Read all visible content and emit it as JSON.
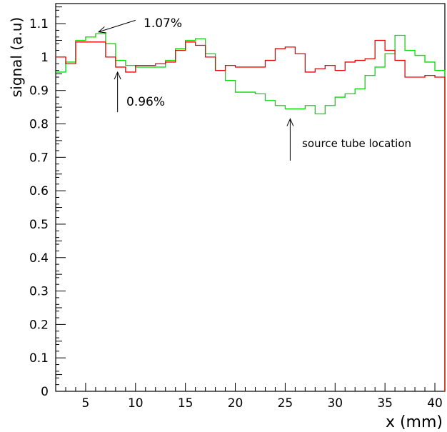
{
  "chart_data": {
    "type": "line",
    "step": true,
    "xlabel": "x (mm)",
    "ylabel": "signal (a.u)",
    "xlim": [
      2,
      41
    ],
    "ylim": [
      0,
      1.16
    ],
    "x_ticks": [
      5,
      10,
      15,
      20,
      25,
      30,
      35,
      40
    ],
    "y_ticks": [
      0,
      0.1,
      0.2,
      0.3,
      0.4,
      0.5,
      0.6,
      0.7,
      0.8,
      0.9,
      1,
      1.1
    ],
    "x_tick_labels": [
      "5",
      "10",
      "15",
      "20",
      "25",
      "30",
      "35",
      "40"
    ],
    "y_tick_labels": [
      "0",
      "0.1",
      "0.2",
      "0.3",
      "0.4",
      "0.5",
      "0.6",
      "0.7",
      "0.8",
      "0.9",
      "1",
      "1.1"
    ],
    "grid": false,
    "legend": "none",
    "series": [
      {
        "color": "#00dd00",
        "bin_edges": [
          2,
          3,
          4,
          5,
          6,
          7,
          8,
          9,
          10,
          11,
          12,
          13,
          14,
          15,
          16,
          17,
          18,
          19,
          20,
          21,
          22,
          23,
          24,
          25,
          26,
          27,
          28,
          29,
          30,
          31,
          32,
          33,
          34,
          35,
          36,
          37,
          38,
          39,
          40,
          41
        ],
        "values": [
          0.955,
          0.985,
          1.05,
          1.06,
          1.07,
          1.04,
          0.99,
          0.975,
          0.97,
          0.97,
          0.97,
          0.99,
          1.025,
          1.05,
          1.055,
          1.01,
          0.96,
          0.93,
          0.895,
          0.895,
          0.89,
          0.87,
          0.855,
          0.845,
          0.845,
          0.855,
          0.83,
          0.855,
          0.88,
          0.89,
          0.905,
          0.945,
          0.97,
          1.01,
          1.065,
          1.02,
          1.005,
          0.985,
          0.96
        ]
      },
      {
        "color": "#ee0000",
        "bin_edges": [
          2,
          3,
          4,
          5,
          6,
          7,
          8,
          9,
          10,
          11,
          12,
          13,
          14,
          15,
          16,
          17,
          18,
          19,
          20,
          21,
          22,
          23,
          24,
          25,
          26,
          27,
          28,
          29,
          30,
          31,
          32,
          33,
          34,
          35,
          36,
          37,
          38,
          39,
          40,
          41
        ],
        "values": [
          1.0,
          0.98,
          1.045,
          1.045,
          1.045,
          1.0,
          0.97,
          0.955,
          0.975,
          0.975,
          0.98,
          0.985,
          1.02,
          1.045,
          1.035,
          1.0,
          0.96,
          0.975,
          0.97,
          0.97,
          0.97,
          0.99,
          1.025,
          1.03,
          1.01,
          0.955,
          0.965,
          0.975,
          0.96,
          0.985,
          0.99,
          0.995,
          1.05,
          1.02,
          0.99,
          0.94,
          0.94,
          0.945,
          0.94
        ]
      }
    ],
    "annotations": [
      {
        "text": "1.07%",
        "arrow_tail": [
          10,
          1.11
        ],
        "arrow_head": [
          6.3,
          1.075
        ]
      },
      {
        "text": "0.96%",
        "arrow_tail": [
          8.2,
          0.835
        ],
        "arrow_head": [
          8.2,
          0.955
        ]
      },
      {
        "text": "source tube location",
        "arrow_tail": [
          25.5,
          0.69
        ],
        "arrow_head": [
          25.5,
          0.815
        ]
      }
    ]
  }
}
